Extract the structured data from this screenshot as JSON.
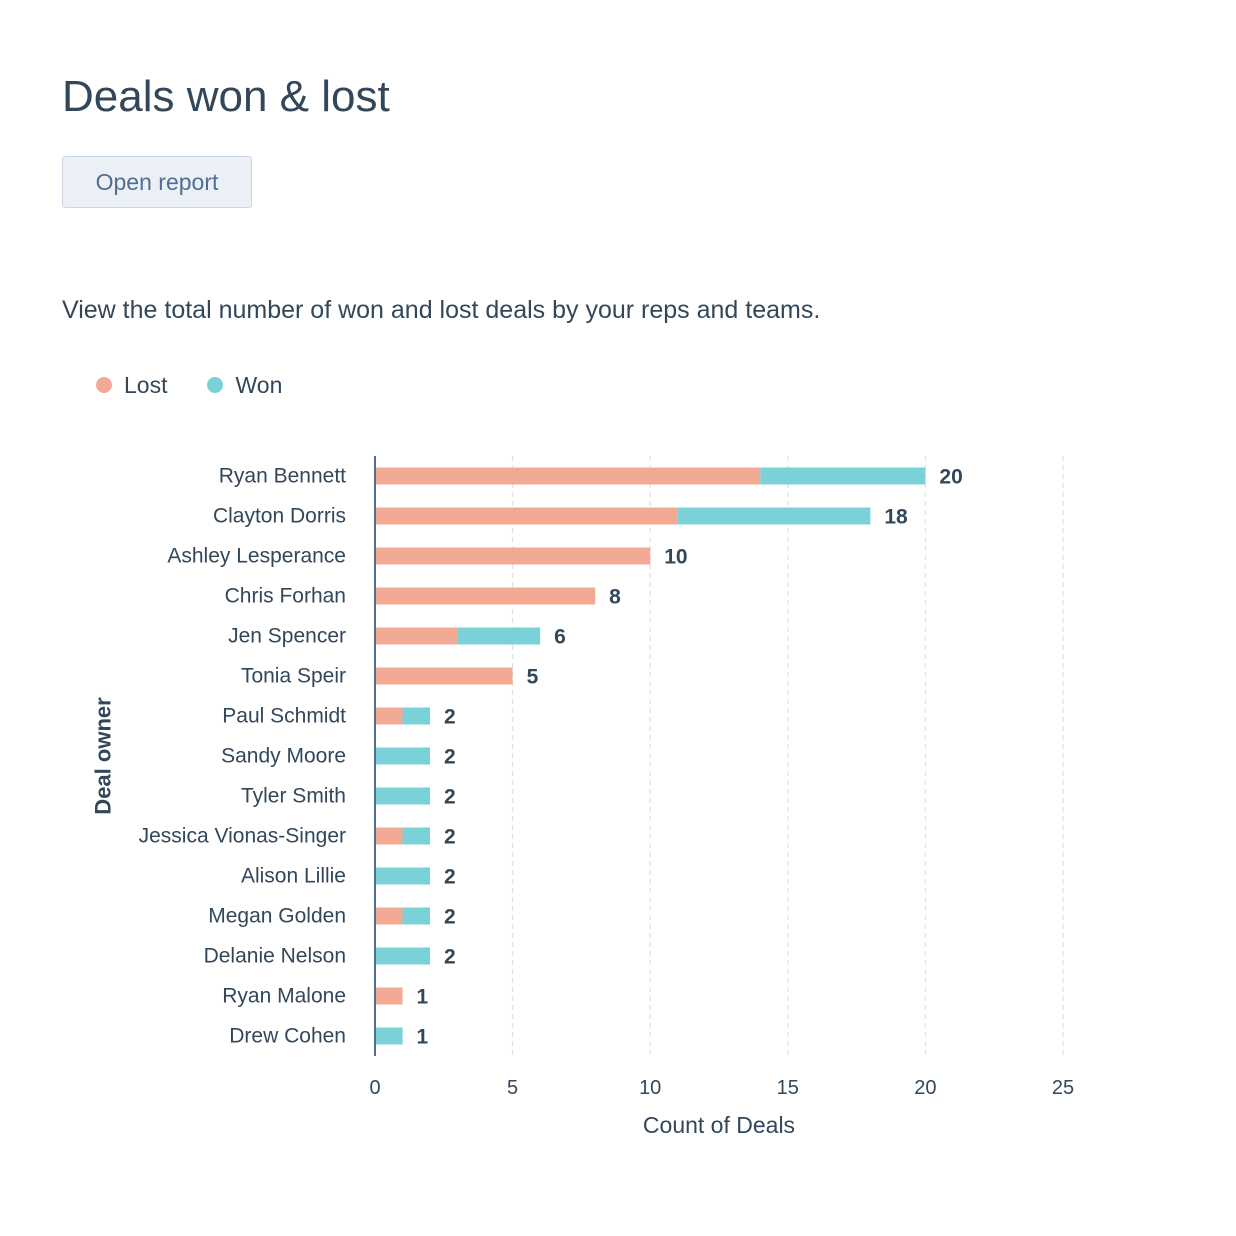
{
  "card": {
    "title": "Deals won & lost",
    "open_report_label": "Open report",
    "description": "View the total number of won and lost deals by your reps and teams."
  },
  "colors": {
    "lost": "#f2a993",
    "won": "#7ad1d8",
    "axis_line": "#516f90",
    "grid": "#dfe3eb",
    "text": "#33475b"
  },
  "legend": [
    {
      "name": "Lost",
      "color": "#f2a993"
    },
    {
      "name": "Won",
      "color": "#7ad1d8"
    }
  ],
  "chart_data": {
    "type": "bar",
    "orientation": "horizontal",
    "stacked": true,
    "xlabel": "Count of Deals",
    "ylabel": "Deal owner",
    "xlim": [
      0,
      25
    ],
    "x_ticks": [
      0,
      5,
      10,
      15,
      20,
      25
    ],
    "grid": "vertical dashed",
    "legend_position": "top-left",
    "categories": [
      "Ryan Bennett",
      "Clayton Dorris",
      "Ashley Lesperance",
      "Chris Forhan",
      "Jen Spencer",
      "Tonia Speir",
      "Paul Schmidt",
      "Sandy Moore",
      "Tyler Smith",
      "Jessica Vionas-Singer",
      "Alison Lillie",
      "Megan Golden",
      "Delanie Nelson",
      "Ryan Malone",
      "Drew Cohen"
    ],
    "series": [
      {
        "name": "Lost",
        "values": [
          14,
          11,
          10,
          8,
          3,
          5,
          1,
          0,
          0,
          1,
          0,
          1,
          0,
          1,
          0
        ]
      },
      {
        "name": "Won",
        "values": [
          6,
          7,
          0,
          0,
          3,
          0,
          1,
          2,
          2,
          1,
          2,
          1,
          2,
          0,
          1
        ]
      }
    ],
    "totals": [
      20,
      18,
      10,
      8,
      6,
      5,
      2,
      2,
      2,
      2,
      2,
      2,
      2,
      1,
      1
    ]
  }
}
